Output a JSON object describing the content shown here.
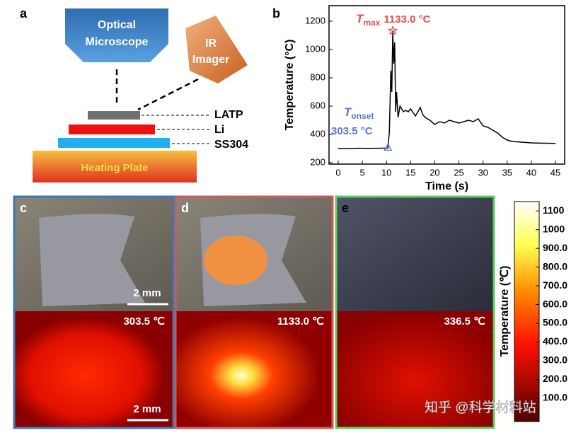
{
  "panel_labels": [
    "a",
    "b",
    "c",
    "d",
    "e"
  ],
  "diagram": {
    "microscope": [
      "Optical",
      "Microscope"
    ],
    "imager": [
      "IR",
      "Imager"
    ],
    "layers": [
      "LATP",
      "Li",
      "SS304"
    ],
    "plate": "Heating Plate"
  },
  "chart_data": {
    "type": "line",
    "xlabel": "Time (s)",
    "ylabel": "Temperature (°C)",
    "x": [
      0,
      2,
      4,
      6,
      8,
      10,
      10.3,
      10.6,
      10.9,
      11.1,
      11.3,
      11.5,
      11.7,
      11.9,
      12.1,
      12.4,
      12.8,
      13.5,
      14,
      14.5,
      15,
      16,
      17,
      17.5,
      18,
      19,
      20,
      21,
      22,
      23,
      24,
      25,
      26,
      27,
      28,
      29,
      30,
      31,
      32,
      33,
      34,
      35,
      36,
      38,
      40,
      42,
      45
    ],
    "series": [
      {
        "name": "Temperature",
        "color": "#000000",
        "values": [
          300,
          300,
          302,
          301,
          302,
          303,
          303.5,
          420,
          850,
          700,
          1133,
          900,
          1050,
          560,
          700,
          520,
          600,
          560,
          570,
          560,
          580,
          530,
          590,
          540,
          520,
          500,
          470,
          490,
          480,
          500,
          490,
          480,
          490,
          500,
          490,
          510,
          460,
          450,
          430,
          410,
          380,
          360,
          350,
          345,
          340,
          338,
          336
        ]
      }
    ],
    "xlim": [
      -1.9,
      46.9
    ],
    "xticks": [
      0,
      5,
      10,
      15,
      20,
      25,
      30,
      35,
      40,
      45
    ],
    "ylim": [
      190,
      1310
    ],
    "yticks": [
      200,
      400,
      600,
      800,
      1000,
      1200
    ],
    "annotations": {
      "tmax": {
        "symbol": "T",
        "sub": "max",
        "text": "1133.0 °C",
        "color": "#e05050"
      },
      "tonset": {
        "symbol": "T",
        "sub": "onset",
        "text": "303.5 °C",
        "color": "#5a78d0"
      }
    }
  },
  "images": [
    {
      "label": "c",
      "temperature": "303.5 ℃",
      "scale_top": "2 mm",
      "scale_bottom": "2 mm",
      "border": "#3a78b8"
    },
    {
      "label": "d",
      "temperature": "1133.0 ℃",
      "border": "#d05a5a"
    },
    {
      "label": "e",
      "temperature": "336.5 ℃",
      "border": "#5ad05a"
    }
  ],
  "colorbar": {
    "title": "Temperature (℃)",
    "lim": [
      -25,
      1150
    ],
    "ticks": [
      1100,
      1000,
      {
        "value": 900,
        "label": "900.0"
      },
      {
        "value": 800,
        "label": "800.0"
      },
      {
        "value": 700,
        "label": "700.0"
      },
      {
        "value": 600,
        "label": "600.0"
      },
      {
        "value": 500,
        "label": "500.0"
      },
      {
        "value": 400,
        "label": "400.0"
      },
      {
        "value": 300,
        "label": "300.0"
      },
      {
        "value": 200,
        "label": "200.0"
      },
      {
        "value": 100,
        "label": "100.0"
      }
    ]
  },
  "watermark": "知乎 @科学材料站"
}
